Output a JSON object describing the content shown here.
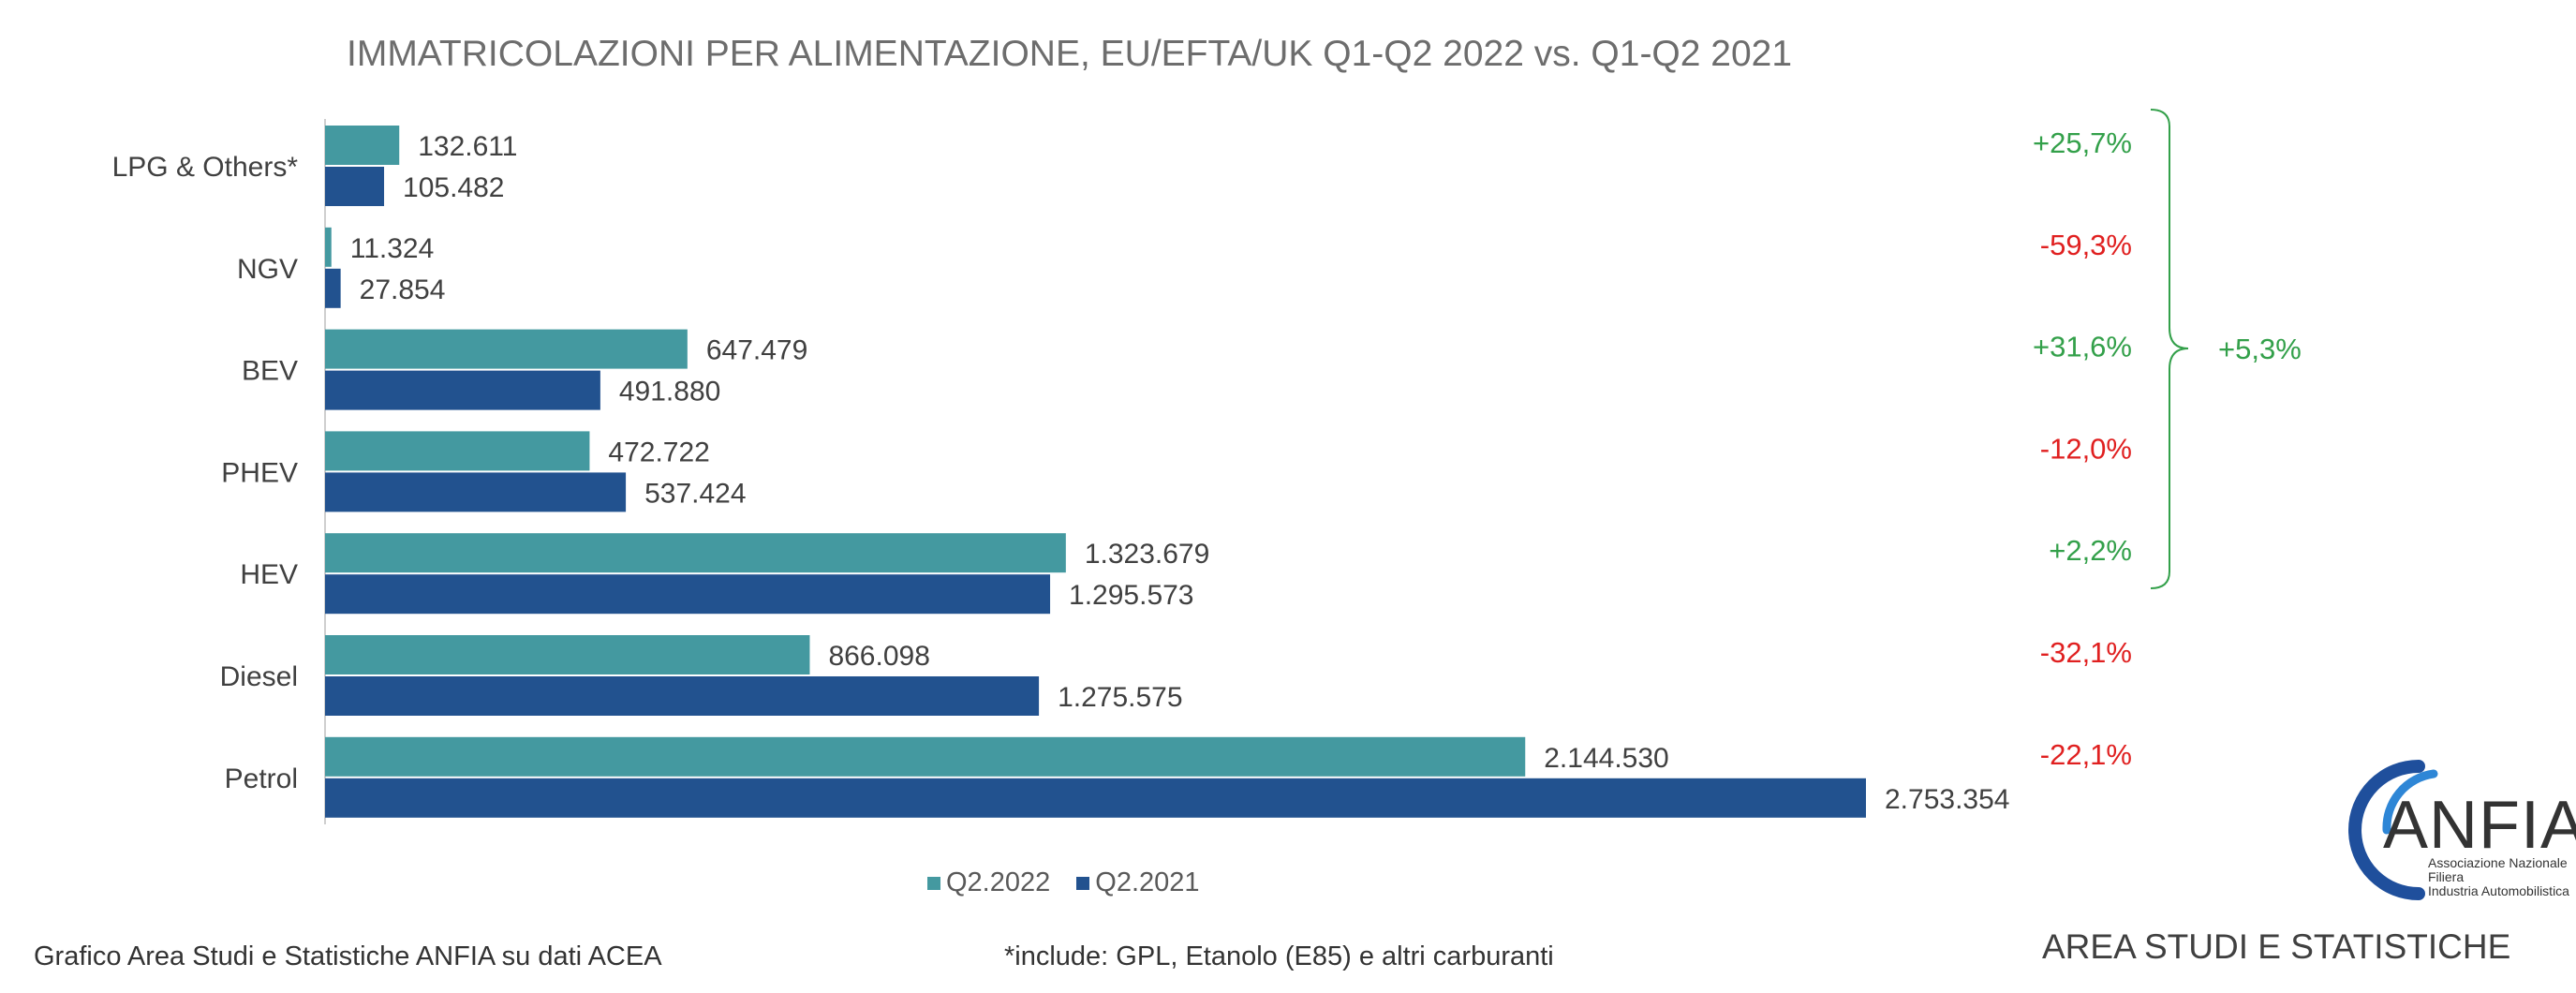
{
  "chart_data": {
    "type": "bar",
    "orientation": "horizontal",
    "title": "IMMATRICOLAZIONI PER ALIMENTAZIONE, EU/EFTA/UK Q1-Q2 2022 vs. Q1-Q2 2021",
    "categories": [
      "LPG & Others*",
      "NGV",
      "BEV",
      "PHEV",
      "HEV",
      "Diesel",
      "Petrol"
    ],
    "series": [
      {
        "name": "Q2.2022",
        "color": "#4499a0",
        "values": [
          132611,
          11324,
          647479,
          472722,
          1323679,
          866098,
          2144530
        ],
        "labels": [
          "132.611",
          "11.324",
          "647.479",
          "472.722",
          "1.323.679",
          "866.098",
          "2.144.530"
        ]
      },
      {
        "name": "Q2.2021",
        "color": "#22528f",
        "values": [
          105482,
          27854,
          491880,
          537424,
          1295573,
          1275575,
          2753354
        ],
        "labels": [
          "105.482",
          "27.854",
          "491.880",
          "537.424",
          "1.295.573",
          "1.275.575",
          "2.753.354"
        ]
      }
    ],
    "changes": [
      "+25,7%",
      "-59,3%",
      "+31,6%",
      "-12,0%",
      "+2,2%",
      "-32,1%",
      "-22,1%"
    ],
    "group_change": {
      "label": "+5,3%",
      "applies_to": [
        "LPG & Others*",
        "NGV",
        "BEV",
        "PHEV",
        "HEV"
      ]
    },
    "xlim": [
      0,
      2753354
    ],
    "grid": false,
    "legend_position": "bottom"
  },
  "colors": {
    "positive": "#33a04a",
    "negative": "#e02020",
    "bracket": "#33a04a",
    "logo_arc_light": "#2e86d6",
    "logo_arc_dark": "#1f4f9c"
  },
  "footer": {
    "source": "Grafico Area Studi e Statistiche ANFIA su dati ACEA",
    "note": "*include: GPL, Etanolo (E85) e altri carburanti",
    "department": "AREA STUDI E STATISTICHE"
  },
  "logo": {
    "name": "ANFIA",
    "subtitle": [
      "Associazione Nazionale",
      "Filiera",
      "Industria Automobilistica"
    ]
  }
}
